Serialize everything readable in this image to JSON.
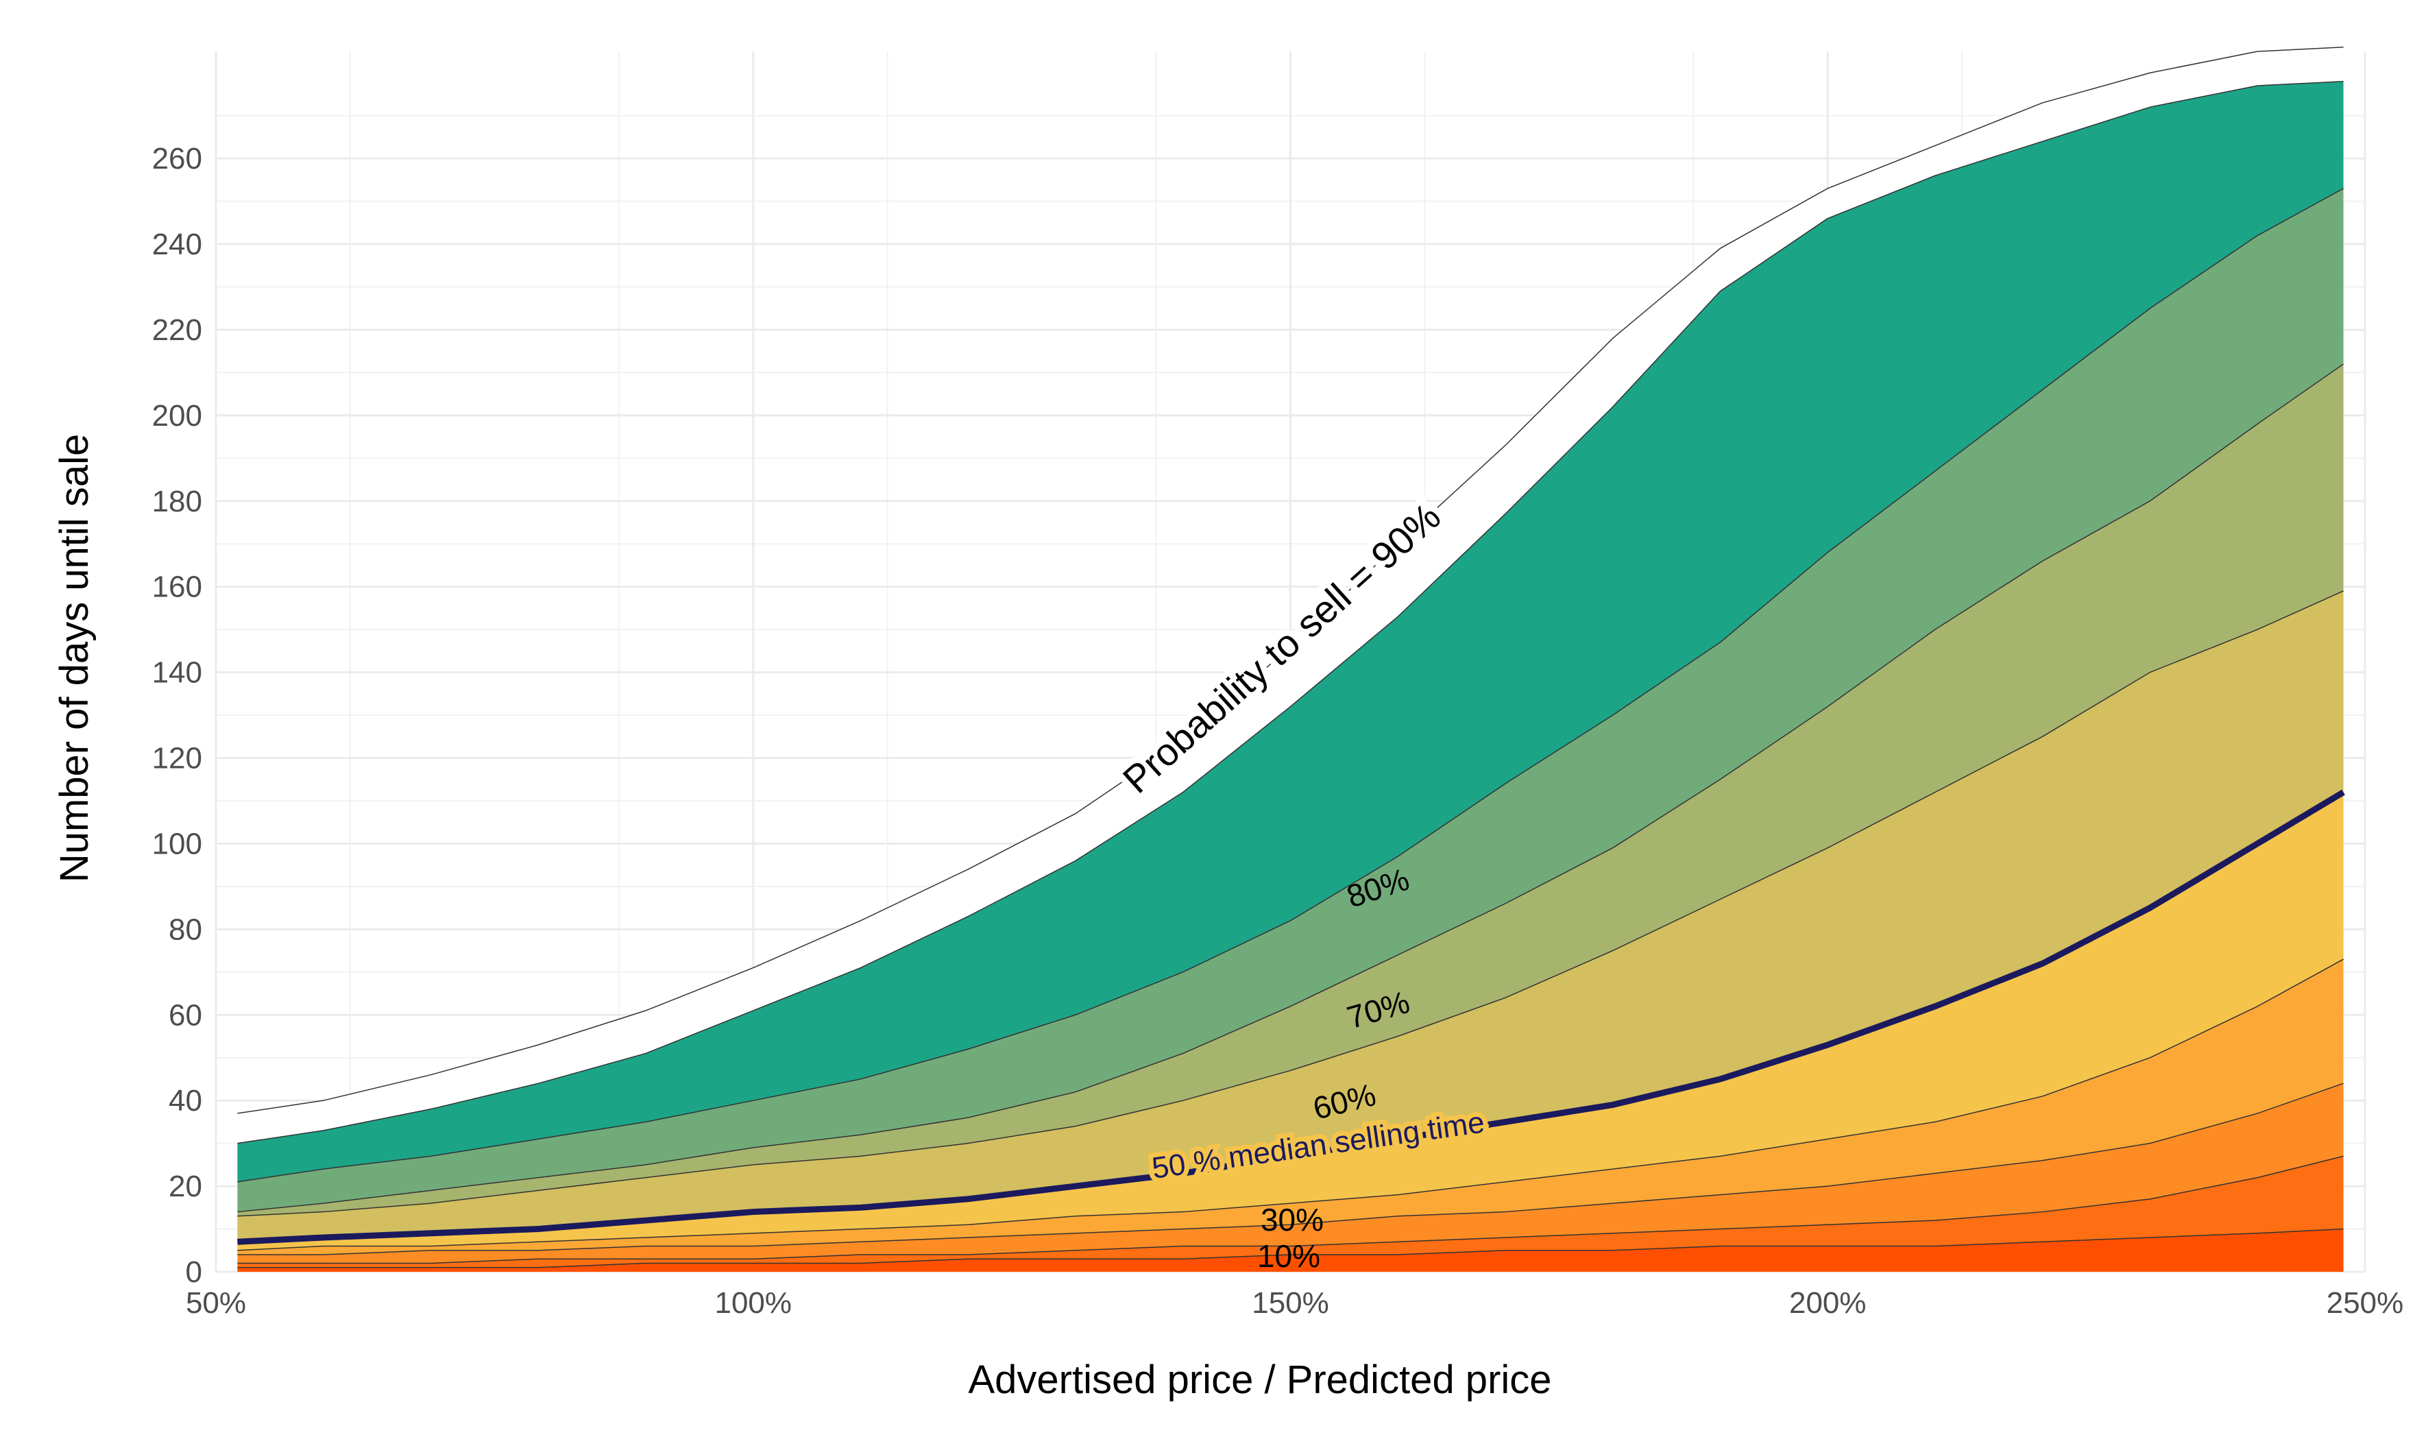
{
  "chart_data": {
    "type": "area",
    "xlabel": "Advertised price / Predicted price",
    "ylabel": "Number of days until sale",
    "xlim": [
      50,
      250
    ],
    "ylim": [
      0,
      285
    ],
    "x_ticks": [
      50,
      100,
      150,
      200,
      250
    ],
    "x_tick_labels": [
      "50%",
      "100%",
      "150%",
      "200%",
      "250%"
    ],
    "y_ticks": [
      0,
      20,
      40,
      60,
      80,
      100,
      120,
      140,
      160,
      180,
      200,
      220,
      240,
      260
    ],
    "y_tick_labels": [
      "0",
      "20",
      "40",
      "60",
      "80",
      "100",
      "120",
      "140",
      "160",
      "180",
      "200",
      "220",
      "240",
      "260"
    ],
    "grid": true,
    "x": [
      52,
      60,
      70,
      80,
      90,
      100,
      110,
      120,
      130,
      140,
      150,
      160,
      170,
      180,
      190,
      200,
      210,
      220,
      230,
      240,
      248
    ],
    "series": [
      {
        "name": "10%",
        "color": "#fe5000",
        "values": [
          1,
          1,
          1,
          1,
          2,
          2,
          2,
          3,
          3,
          3,
          4,
          4,
          5,
          5,
          6,
          6,
          6,
          7,
          8,
          9,
          10
        ]
      },
      {
        "name": "",
        "color": "#fe6e12",
        "values": [
          2,
          2,
          2,
          3,
          3,
          3,
          4,
          4,
          5,
          6,
          6,
          7,
          8,
          9,
          10,
          11,
          12,
          14,
          17,
          22,
          27
        ]
      },
      {
        "name": "30%",
        "color": "#fd8c25",
        "values": [
          4,
          4,
          5,
          5,
          6,
          6,
          7,
          8,
          9,
          10,
          11,
          13,
          14,
          16,
          18,
          20,
          23,
          26,
          30,
          37,
          44
        ]
      },
      {
        "name": "",
        "color": "#fba837",
        "values": [
          5,
          6,
          6,
          7,
          8,
          9,
          10,
          11,
          13,
          14,
          16,
          18,
          21,
          24,
          27,
          31,
          35,
          41,
          50,
          62,
          73
        ]
      },
      {
        "name": "50 % median selling time",
        "color": "#f5c44b",
        "values": [
          7,
          8,
          9,
          10,
          12,
          14,
          15,
          17,
          20,
          23,
          27,
          31,
          35,
          39,
          45,
          53,
          62,
          72,
          85,
          100,
          112
        ]
      },
      {
        "name": "60%",
        "color": "#d3be60",
        "values": [
          13,
          14,
          16,
          19,
          22,
          25,
          27,
          30,
          34,
          40,
          47,
          55,
          64,
          75,
          87,
          99,
          112,
          125,
          140,
          150,
          159
        ]
      },
      {
        "name": "70%",
        "color": "#a6b46e",
        "values": [
          14,
          16,
          19,
          22,
          25,
          29,
          32,
          36,
          42,
          51,
          62,
          74,
          86,
          99,
          115,
          132,
          150,
          166,
          180,
          198,
          212
        ]
      },
      {
        "name": "80%",
        "color": "#72ab7a",
        "values": [
          21,
          24,
          27,
          31,
          35,
          40,
          45,
          52,
          60,
          70,
          82,
          97,
          114,
          130,
          147,
          168,
          187,
          206,
          225,
          242,
          253
        ]
      },
      {
        "name": "Probability to sell = 90%",
        "color": "#1ca487",
        "values": [
          30,
          33,
          38,
          44,
          51,
          61,
          71,
          83,
          96,
          112,
          132,
          153,
          177,
          202,
          229,
          246,
          256,
          264,
          272,
          277,
          278
        ]
      }
    ],
    "outer_band": [
      37,
      40,
      46,
      53,
      61,
      71,
      82,
      94,
      107,
      124,
      146,
      170,
      193,
      218,
      239,
      253,
      263,
      273,
      280,
      285,
      286
    ],
    "median_series": "50 % median selling time",
    "annotations": [
      "Probability to sell = 90%",
      "80%",
      "70%",
      "60%",
      "50 % median selling time",
      "30%",
      "10%"
    ]
  }
}
